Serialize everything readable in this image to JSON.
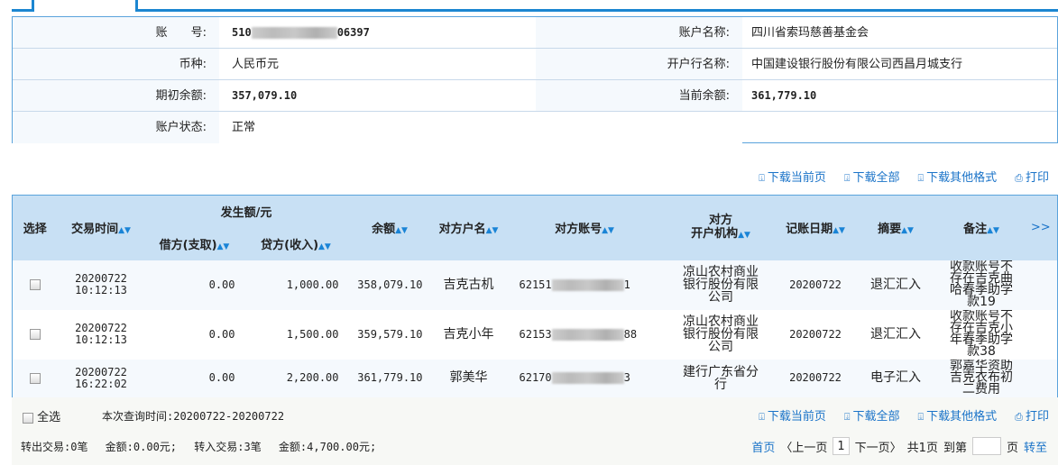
{
  "account": {
    "labels": {
      "account_no": "账　　号:",
      "account_name": "账户名称:",
      "currency": "币种:",
      "bank": "开户行名称:",
      "opening_balance": "期初余额:",
      "current_balance": "当前余额:",
      "status": "账户状态:"
    },
    "account_no_prefix": "510",
    "account_no_suffix": "06397",
    "account_name": "四川省索玛慈善基金会",
    "currency": "人民币元",
    "bank": "中国建设银行股份有限公司西昌月城支行",
    "opening_balance": "357,079.10",
    "current_balance": "361,779.10",
    "status": "正常"
  },
  "toolbar": {
    "download_page": "下载当前页",
    "download_all": "下载全部",
    "download_other": "下载其他格式",
    "print": "打印"
  },
  "table": {
    "headers": {
      "select": "选择",
      "time": "交易时间",
      "amount_group": "发生额/元",
      "debit": "借方(支取)",
      "credit": "贷方(收入)",
      "balance": "余额",
      "cp_name": "对方户名",
      "cp_account": "对方账号",
      "cp_bank_1": "对方",
      "cp_bank_2": "开户机构",
      "post_date": "记账日期",
      "summary": "摘要",
      "remark": "备注",
      "more": ">>"
    },
    "rows": [
      {
        "date": "20200722",
        "time": "10:12:13",
        "debit": "0.00",
        "credit": "1,000.00",
        "balance": "358,079.10",
        "cp_name": "吉克古机",
        "acct_prefix": "62151",
        "acct_suffix": "1",
        "cp_bank": "凉山农村商业银行股份有限公司",
        "post_date": "20200722",
        "summary": "退汇汇入",
        "remark": "收款账号不存在吉克曲哈春季助学款19"
      },
      {
        "date": "20200722",
        "time": "10:12:13",
        "debit": "0.00",
        "credit": "1,500.00",
        "balance": "359,579.10",
        "cp_name": "吉克小年",
        "acct_prefix": "62153",
        "acct_suffix": "88",
        "cp_bank": "凉山农村商业银行股份有限公司",
        "post_date": "20200722",
        "summary": "退汇汇入",
        "remark": "收款账号不存在吉克小年春季助学款38"
      },
      {
        "date": "20200722",
        "time": "16:22:02",
        "debit": "0.00",
        "credit": "2,200.00",
        "balance": "361,779.10",
        "cp_name": "郭美华",
        "acct_prefix": "62170",
        "acct_suffix": "3",
        "cp_bank": "建行广东省分行",
        "post_date": "20200722",
        "summary": "电子汇入",
        "remark": "郭嘉华资助吉克衣布初二费用"
      }
    ]
  },
  "footer": {
    "select_all": "全选",
    "query_time": "本次查询时间:20200722-20200722",
    "summary": "转出交易:0笔　 金额:0.00元;　 转入交易:3笔　 金额:4,700.00元;",
    "pager": {
      "first": "首页",
      "prev": "〈上一页",
      "current": "1",
      "next": "下一页〉",
      "total": "共1页",
      "goto_prefix": "到第",
      "goto_suffix": "页",
      "go": "转至"
    }
  },
  "colors": {
    "link": "#1a73c8",
    "header_bg": "#c8e0f4",
    "border": "#5aa3dc"
  }
}
